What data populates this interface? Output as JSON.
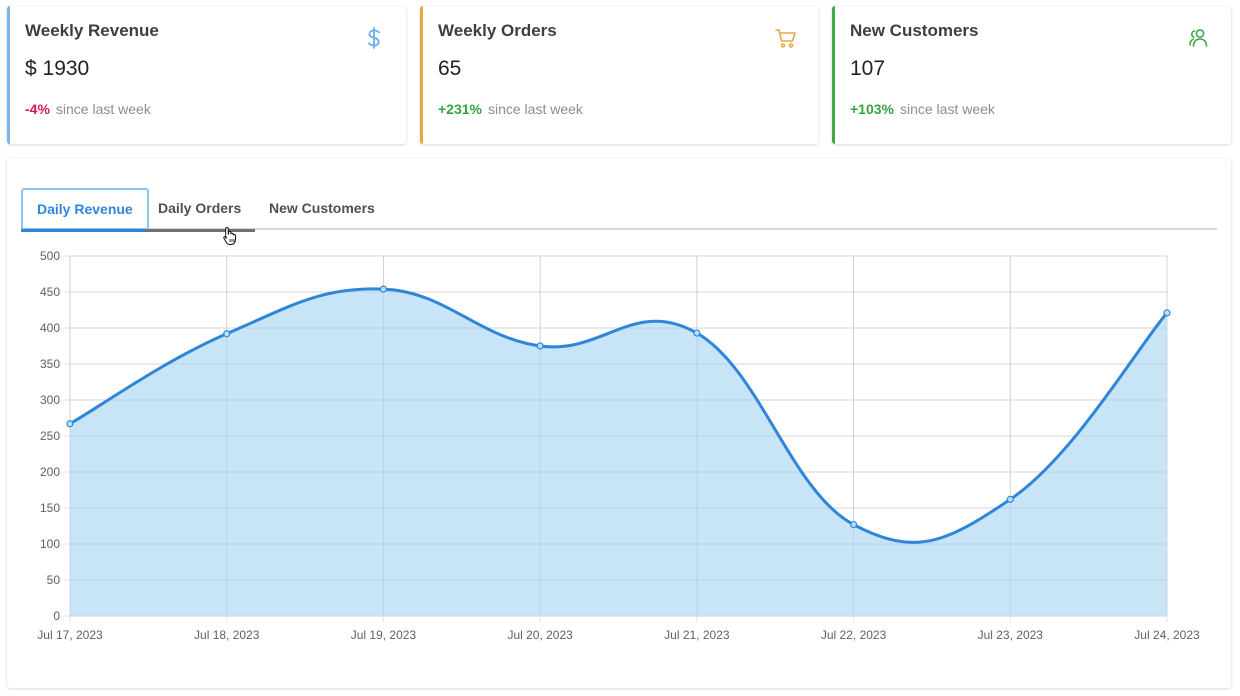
{
  "cards": [
    {
      "title": "Weekly Revenue",
      "value": "$ 1930",
      "change": "-4%",
      "change_color": "#d8194d",
      "since": "since last week",
      "accent": "#7bb6e8",
      "icon": "dollar-icon",
      "icon_color": "#68aee6"
    },
    {
      "title": "Weekly Orders",
      "value": "65",
      "change": "+231%",
      "change_color": "#37a33f",
      "since": "since last week",
      "accent": "#eba644",
      "icon": "cart-icon",
      "icon_color": "#eba644"
    },
    {
      "title": "New Customers",
      "value": "107",
      "change": "+103%",
      "change_color": "#37a33f",
      "since": "since last week",
      "accent": "#3fa847",
      "icon": "users-icon",
      "icon_color": "#3fa847"
    }
  ],
  "tabs": [
    {
      "label": "Daily Revenue",
      "active": true
    },
    {
      "label": "Daily Orders",
      "active": false
    },
    {
      "label": "New Customers",
      "active": false
    }
  ],
  "chart_data": {
    "type": "area",
    "categories": [
      "Jul 17, 2023",
      "Jul 18, 2023",
      "Jul 19, 2023",
      "Jul 20, 2023",
      "Jul 21, 2023",
      "Jul 22, 2023",
      "Jul 23, 2023",
      "Jul 24, 2023"
    ],
    "series": [
      {
        "values": [
          267,
          392,
          454,
          375,
          393,
          127,
          162,
          421
        ]
      }
    ],
    "ylim": [
      0,
      500
    ],
    "yticks": [
      0,
      50,
      100,
      150,
      200,
      250,
      300,
      350,
      400,
      450,
      500
    ],
    "grid": true,
    "line_color": "#2f86d8",
    "fill_color": "#c5e4f7",
    "title": "",
    "xlabel": "",
    "ylabel": ""
  }
}
